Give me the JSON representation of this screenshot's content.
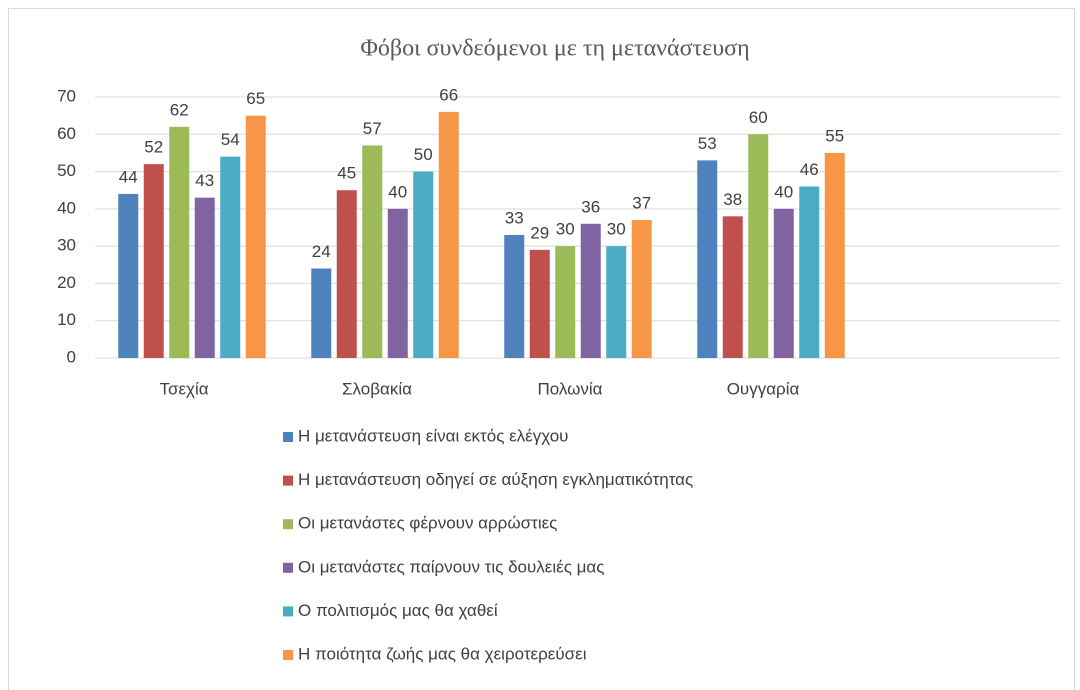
{
  "chart_data": {
    "type": "bar",
    "title": "Φόβοι συνδεόμενοι με τη μετανάστευση",
    "categories": [
      "Τσεχία",
      "Σλοβακία",
      "Πολωνία",
      "Ουγγαρία"
    ],
    "series": [
      {
        "name": "Η μετανάστευση είναι εκτός ελέγχου",
        "color": "#4f81bd",
        "values": [
          44,
          24,
          33,
          53
        ]
      },
      {
        "name": "Η μετανάστευση οδηγεί σε αύξηση εγκληματικότητας",
        "color": "#c0504d",
        "values": [
          52,
          45,
          29,
          38
        ]
      },
      {
        "name": "Οι μετανάστες φέρνουν αρρώστιες",
        "color": "#9bbb59",
        "values": [
          62,
          57,
          30,
          60
        ]
      },
      {
        "name": "Οι μετανάστες παίρνουν τις δουλειές μας",
        "color": "#8064a2",
        "values": [
          43,
          40,
          36,
          40
        ]
      },
      {
        "name": "Ο πολιτισμός μας θα χαθεί",
        "color": "#4bacc6",
        "values": [
          54,
          50,
          30,
          46
        ]
      },
      {
        "name": "Η ποιότητα ζωής μας θα χειροτερεύσει",
        "color": "#f79646",
        "values": [
          65,
          66,
          37,
          55
        ]
      }
    ],
    "ylim": [
      0,
      70
    ],
    "yticks": [
      0,
      10,
      20,
      30,
      40,
      50,
      60,
      70
    ],
    "grid": true,
    "legend": "bottom"
  }
}
